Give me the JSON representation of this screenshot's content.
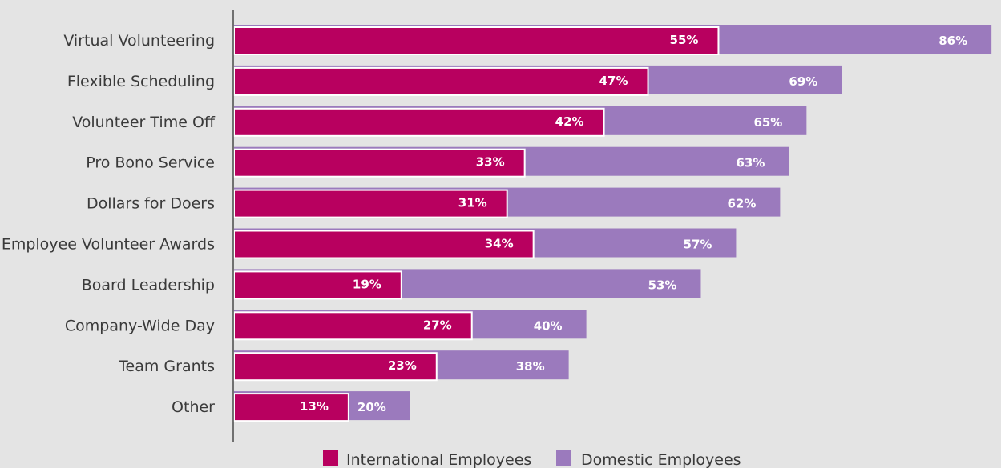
{
  "chart_data": {
    "type": "bar",
    "orientation": "horizontal",
    "categories": [
      "Virtual Volunteering",
      "Flexible Scheduling",
      "Volunteer Time Off",
      "Pro Bono Service",
      "Dollars for Doers",
      "Employee Volunteer Awards",
      "Board Leadership",
      "Company-Wide Day",
      "Team Grants",
      "Other"
    ],
    "series": [
      {
        "name": "International Employees",
        "color": "#b8005f",
        "values": [
          55,
          47,
          42,
          33,
          31,
          34,
          19,
          27,
          23,
          13
        ],
        "labels": [
          "55%",
          "47%",
          "42%",
          "33%",
          "31%",
          "34%",
          "19%",
          "27%",
          "23%",
          "13%"
        ]
      },
      {
        "name": "Domestic Employees",
        "color": "#9b7abd",
        "values": [
          86,
          69,
          65,
          63,
          62,
          57,
          53,
          40,
          38,
          20
        ],
        "labels": [
          "86%",
          "69%",
          "65%",
          "63%",
          "62%",
          "57%",
          "53%",
          "40%",
          "38%",
          "20%"
        ]
      }
    ],
    "value_unit": "%",
    "overlapping_bars": true,
    "legend_position": "bottom-center",
    "grid": false
  }
}
